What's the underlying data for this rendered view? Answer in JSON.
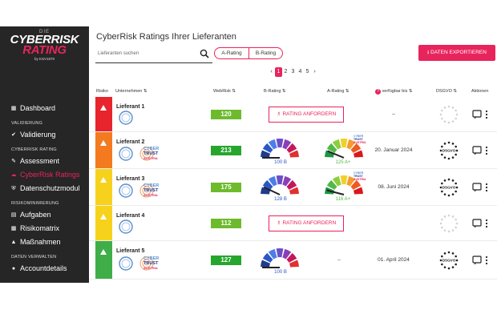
{
  "brand": {
    "prefix": "DIE",
    "name_line1": "CYBERRISK",
    "name_line2": "RATING",
    "by": "by KSV1870"
  },
  "nav": {
    "items": [
      {
        "label": "Dashboard",
        "icon": "dashboard-icon"
      },
      {
        "section": "VALIDIERUNG"
      },
      {
        "label": "Validierung",
        "icon": "check-circle-icon"
      },
      {
        "section": "CYBERRISK RATING"
      },
      {
        "label": "Assessment",
        "icon": "edit-icon"
      },
      {
        "label": "CyberRisk Ratings",
        "icon": "cloud-icon",
        "active": true
      },
      {
        "label": "Datenschutzmodul",
        "icon": "shield-icon"
      },
      {
        "section": "RISIKOMINIMIERUNG"
      },
      {
        "label": "Aufgaben",
        "icon": "clipboard-icon"
      },
      {
        "label": "Risikomatrix",
        "icon": "grid-icon"
      },
      {
        "label": "Maßnahmen",
        "icon": "arrow-up-icon"
      },
      {
        "section": "DATEN VERWALTEN"
      },
      {
        "label": "Accountdetails",
        "icon": "account-icon"
      }
    ]
  },
  "page": {
    "title": "CyberRisk Ratings Ihrer Lieferanten",
    "search_placeholder": "Lieferanten suchen",
    "filter_a": "A-Rating",
    "filter_b": "B-Rating",
    "export_label": "DATEN EXPORTIEREN",
    "pager": {
      "prev": "‹",
      "pages": [
        "1",
        "2",
        "3",
        "4",
        "5"
      ],
      "next": "›",
      "current": "1"
    }
  },
  "table": {
    "headers": {
      "risiko": "Risiko",
      "unternehmen": "Unternehmen ⇅",
      "webrisk": "WebRisk ⇅",
      "brating": "B-Rating ⇅",
      "arating": "A-Rating ⇅",
      "verfuegbar": "verfügbar bis ⇅",
      "dsgvo": "DSGVO ⇅",
      "aktionen": "Aktionen"
    },
    "rows": [
      {
        "name": "Lieferant 1",
        "risk_color": "#e8242c",
        "webrisk": "120",
        "rating_request": "RATING ANFORDERN",
        "date": "–",
        "has_b": false,
        "has_a": false,
        "cyber": false
      },
      {
        "name": "Lieferant 2",
        "risk_color": "#f47a20",
        "webrisk": "213",
        "b_label": "100 B",
        "a_label": "125 A+",
        "b_value": 100,
        "a_value": 125,
        "date": "20. Januar 2024",
        "has_b": true,
        "has_a": true,
        "cyber": true
      },
      {
        "name": "Lieferant 3",
        "risk_color": "#f7d21c",
        "webrisk": "175",
        "b_label": "128 B",
        "a_label": "116 A+",
        "b_value": 128,
        "a_value": 116,
        "date": "08. Juni 2024",
        "has_b": true,
        "has_a": true,
        "cyber": true
      },
      {
        "name": "Lieferant 4",
        "risk_color": "#f7d21c",
        "webrisk": "112",
        "rating_request": "RATING ANFORDERN",
        "date": "",
        "has_b": false,
        "has_a": false,
        "cyber": false
      },
      {
        "name": "Lieferant 5",
        "risk_color": "#3fae49",
        "webrisk": "127",
        "b_label": "100 B",
        "a_label": "",
        "b_value": 100,
        "date": "01. April 2024",
        "has_b": true,
        "has_a": false,
        "cyber": true,
        "a_dash": "–"
      }
    ],
    "cyber_trust": {
      "line1": "CYBER",
      "line2": "TRUST",
      "line3": "AUSTRIA"
    },
    "dsgvo_label": "DSGVO"
  }
}
